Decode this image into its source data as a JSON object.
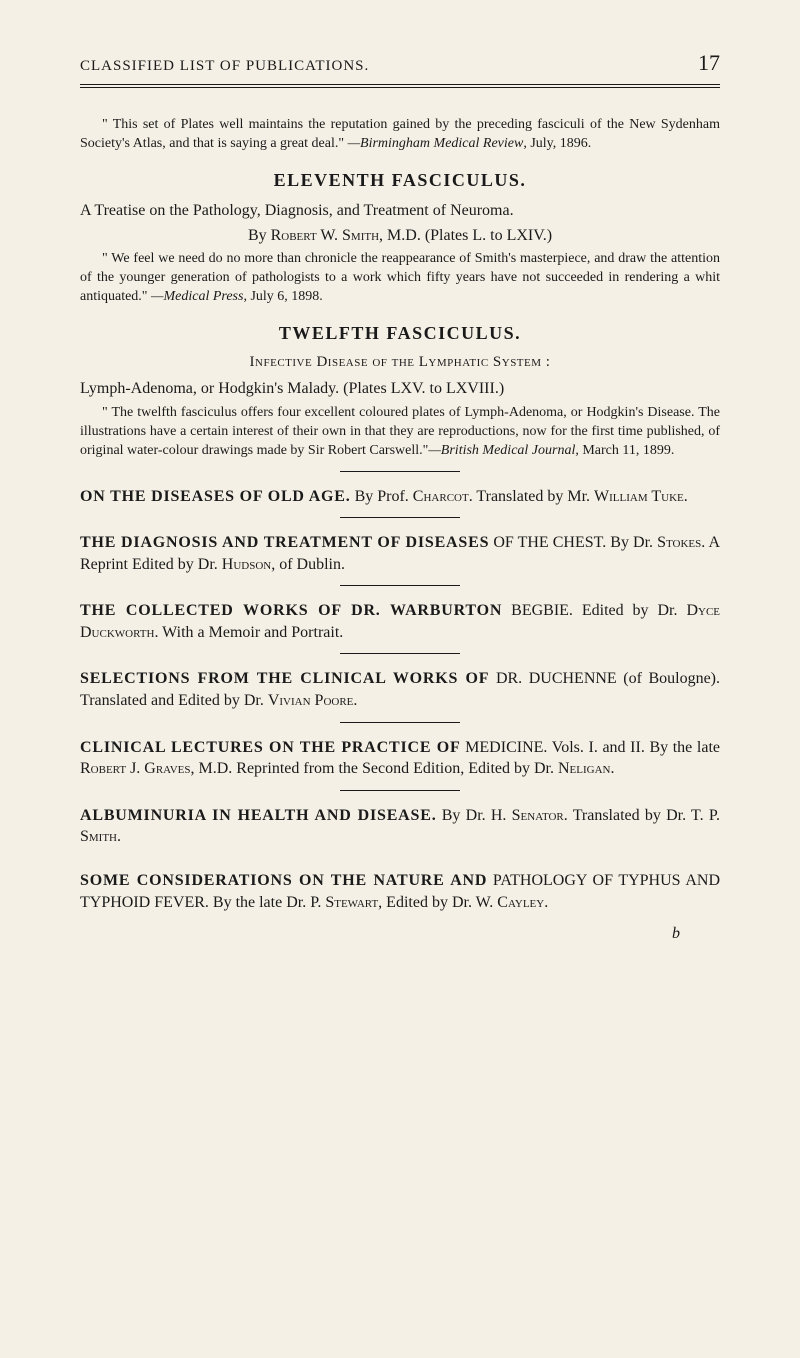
{
  "header": {
    "title": "CLASSIFIED LIST OF PUBLICATIONS.",
    "page_number": "17"
  },
  "intro_quote": "\" This set of Plates well maintains the reputation gained by the preceding fasciculi of the New Sydenham Society's Atlas, and that is saying a great deal.\"",
  "intro_attrib_italic": "—Birmingham Medical Review",
  "intro_attrib_rest": ", July, 1896.",
  "eleventh": {
    "heading": "ELEVENTH FASCICULUS.",
    "treatise_line1": "A Treatise on the Pathology, Diagnosis, and Treatment of Neuroma.",
    "treatise_line2_pre": "By ",
    "treatise_line2_author": "Robert W. Smith",
    "treatise_line2_post": ", M.D.   (Plates L. to LXIV.)",
    "quote": "\" We feel we need do no more than chronicle the reappearance of Smith's masterpiece, and draw the attention of the younger generation of pathologists to a work which fifty years have not succeeded in rendering a whit antiquated.\"",
    "attrib_italic": "—Medical Press",
    "attrib_rest": ", July 6, 1898."
  },
  "twelfth": {
    "heading": "TWELFTH FASCICULUS.",
    "subheading_pre": "Infective Disease of the Lymphatic System",
    "subheading_post": " :",
    "treatise": "Lymph-Adenoma, or Hodgkin's Malady.   (Plates LXV. to LXVIII.)",
    "quote": "\" The twelfth fasciculus offers four excellent coloured plates of Lymph-Adenoma, or Hodgkin's Disease. The illustrations have a certain interest of their own in that they are reproductions, now for the first time published, of original water-colour drawings made by Sir Robert Carswell.\"",
    "attrib_italic": "—British Medical Journal",
    "attrib_rest": ", March 11, 1899."
  },
  "entries": {
    "old_age": {
      "title": "ON THE DISEASES OF OLD AGE.",
      "rest1": "By Prof. ",
      "sc1": "Charcot",
      "rest2": ". Translated by Mr. ",
      "sc2": "William Tuke",
      "rest3": "."
    },
    "chest": {
      "title": "THE DIAGNOSIS AND TREATMENT OF DISEASES",
      "rest1": " OF THE CHEST. By Dr. ",
      "sc1": "Stokes",
      "rest2": ". A Reprint Edited by Dr. ",
      "sc2": "Hudson",
      "rest3": ", of Dublin."
    },
    "warburton": {
      "title": "THE COLLECTED WORKS OF DR. WARBURTON",
      "rest1": " BEGBIE. Edited by Dr. ",
      "sc1": "Dyce Duckworth",
      "rest2": ". With a Memoir and Portrait."
    },
    "duchenne": {
      "title": "SELECTIONS FROM THE CLINICAL WORKS OF",
      "rest1": " DR. DUCHENNE (of Boulogne). Translated and Edited by Dr. ",
      "sc1": "Vivian Poore",
      "rest2": "."
    },
    "clinical": {
      "title": "CLINICAL LECTURES ON THE PRACTICE OF",
      "rest1": " MEDICINE. Vols. I. and II. By the late ",
      "sc1": "Robert J. Graves",
      "rest2": ", M.D. Reprinted from the Second Edition, Edited by Dr. ",
      "sc2": "Neligan",
      "rest3": "."
    },
    "albuminuria": {
      "title": "ALBUMINURIA IN HEALTH AND DISEASE.",
      "rest1": " By Dr. H. ",
      "sc1": "Senator",
      "rest2": ". Translated by Dr. T. P. ",
      "sc2": "Smith",
      "rest3": "."
    },
    "typhus": {
      "title": "SOME CONSIDERATIONS ON THE NATURE AND",
      "rest1": " PATHOLOGY OF TYPHUS AND TYPHOID FEVER. By the late Dr. P. ",
      "sc1": "Stewart",
      "rest2": ", Edited by Dr. W. ",
      "sc2": "Cayley",
      "rest3": "."
    }
  },
  "footer_mark": "b"
}
